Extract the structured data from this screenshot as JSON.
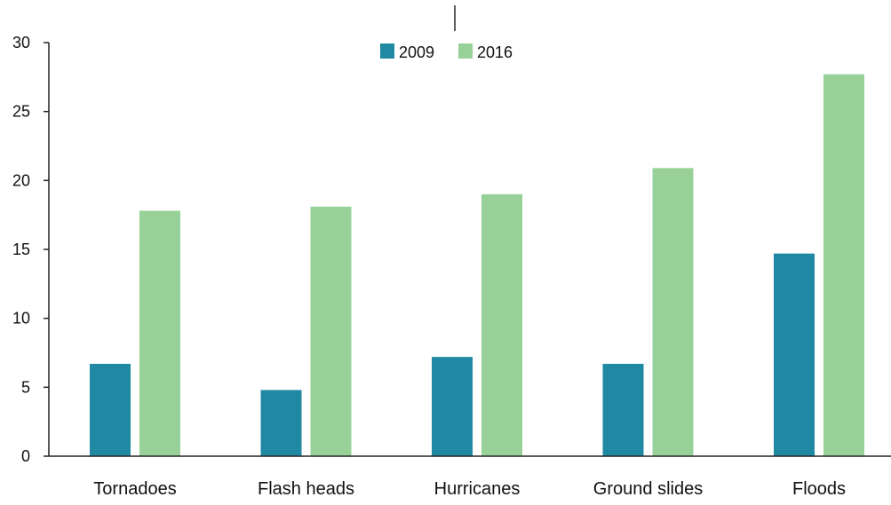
{
  "colors": {
    "series_2009": "#1f89a4",
    "series_2016": "#97d197",
    "axis": "#222222",
    "text": "#111111"
  },
  "legend": {
    "placement": "top-center",
    "items": [
      {
        "label": "2009"
      },
      {
        "label": "2016"
      }
    ]
  },
  "chart_data": {
    "type": "bar",
    "title": "",
    "xlabel": "",
    "ylabel": "",
    "categories": [
      "Tornadoes",
      "Flash heads",
      "Hurricanes",
      "Ground slides",
      "Floods"
    ],
    "series": [
      {
        "name": "2009",
        "values": [
          6.7,
          4.8,
          7.2,
          6.7,
          14.7
        ]
      },
      {
        "name": "2016",
        "values": [
          17.8,
          18.1,
          19.0,
          20.9,
          27.7
        ]
      }
    ],
    "ylim": [
      0,
      30
    ],
    "yticks": [
      "0",
      "5",
      "10",
      "15",
      "20",
      "25",
      "30"
    ],
    "grid": false
  }
}
